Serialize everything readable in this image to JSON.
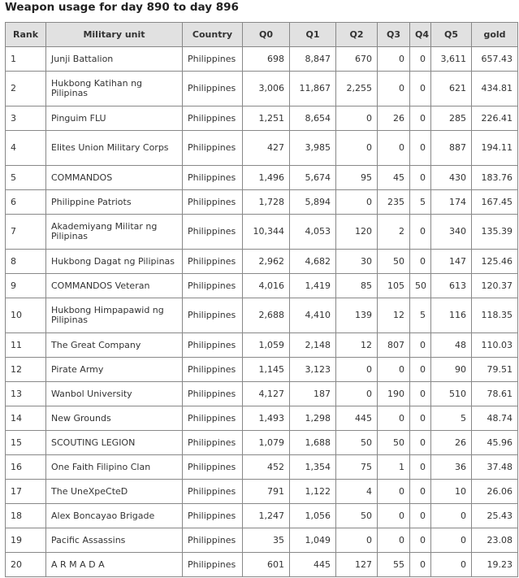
{
  "title": "Weapon usage for day 890 to day 896",
  "columns": [
    "Rank",
    "Military unit",
    "Country",
    "Q0",
    "Q1",
    "Q2",
    "Q3",
    "Q4",
    "Q5",
    "gold"
  ],
  "rows": [
    [
      "1",
      "Junji Battalion",
      "Philippines",
      "698",
      "8,847",
      "670",
      "0",
      "0",
      "3,611",
      "657.43"
    ],
    [
      "2",
      "Hukbong Katihan ng Pilipinas",
      "Philippines",
      "3,006",
      "11,867",
      "2,255",
      "0",
      "0",
      "621",
      "434.81"
    ],
    [
      "3",
      "Pinguim FLU",
      "Philippines",
      "1,251",
      "8,654",
      "0",
      "26",
      "0",
      "285",
      "226.41"
    ],
    [
      "4",
      "Elites Union Military Corps",
      "Philippines",
      "427",
      "3,985",
      "0",
      "0",
      "0",
      "887",
      "194.11"
    ],
    [
      "5",
      "COMMANDOS",
      "Philippines",
      "1,496",
      "5,674",
      "95",
      "45",
      "0",
      "430",
      "183.76"
    ],
    [
      "6",
      "Philippine Patriots",
      "Philippines",
      "1,728",
      "5,894",
      "0",
      "235",
      "5",
      "174",
      "167.45"
    ],
    [
      "7",
      "Akademiyang Militar ng Pilipinas",
      "Philippines",
      "10,344",
      "4,053",
      "120",
      "2",
      "0",
      "340",
      "135.39"
    ],
    [
      "8",
      "Hukbong Dagat ng Pilipinas",
      "Philippines",
      "2,962",
      "4,682",
      "30",
      "50",
      "0",
      "147",
      "125.46"
    ],
    [
      "9",
      "COMMANDOS Veteran",
      "Philippines",
      "4,016",
      "1,419",
      "85",
      "105",
      "50",
      "613",
      "120.37"
    ],
    [
      "10",
      "Hukbong Himpapawid ng Pilipinas",
      "Philippines",
      "2,688",
      "4,410",
      "139",
      "12",
      "5",
      "116",
      "118.35"
    ],
    [
      "11",
      "The Great Company",
      "Philippines",
      "1,059",
      "2,148",
      "12",
      "807",
      "0",
      "48",
      "110.03"
    ],
    [
      "12",
      "Pirate Army",
      "Philippines",
      "1,145",
      "3,123",
      "0",
      "0",
      "0",
      "90",
      "79.51"
    ],
    [
      "13",
      "Wanbol University",
      "Philippines",
      "4,127",
      "187",
      "0",
      "190",
      "0",
      "510",
      "78.61"
    ],
    [
      "14",
      "New Grounds",
      "Philippines",
      "1,493",
      "1,298",
      "445",
      "0",
      "0",
      "5",
      "48.74"
    ],
    [
      "15",
      "SCOUTING LEGION",
      "Philippines",
      "1,079",
      "1,688",
      "50",
      "50",
      "0",
      "26",
      "45.96"
    ],
    [
      "16",
      "One Faith Filipino Clan",
      "Philippines",
      "452",
      "1,354",
      "75",
      "1",
      "0",
      "36",
      "37.48"
    ],
    [
      "17",
      "The UneXpeCteD",
      "Philippines",
      "791",
      "1,122",
      "4",
      "0",
      "0",
      "10",
      "26.06"
    ],
    [
      "18",
      "Alex Boncayao Brigade",
      "Philippines",
      "1,247",
      "1,056",
      "50",
      "0",
      "0",
      "0",
      "25.43"
    ],
    [
      "19",
      "Pacific Assassins",
      "Philippines",
      "35",
      "1,049",
      "0",
      "0",
      "0",
      "0",
      "23.08"
    ],
    [
      "20",
      "A R M A D A",
      "Philippines",
      "601",
      "445",
      "127",
      "55",
      "0",
      "0",
      "19.23"
    ]
  ]
}
